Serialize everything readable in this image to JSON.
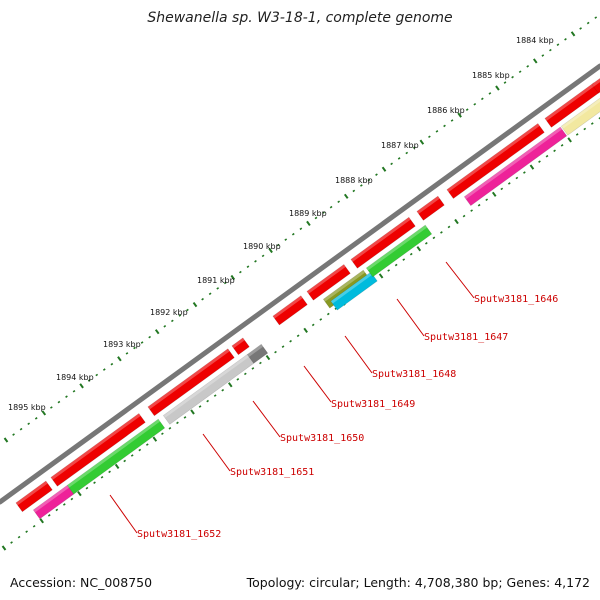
{
  "title": "Shewanella sp. W3-18-1, complete genome",
  "footer": {
    "accession": "Accession: NC_008750",
    "summary": "Topology: circular; Length: 4,708,380 bp; Genes: 4,172"
  },
  "kbp_labels": [
    "1884 kbp",
    "1885 kbp",
    "1886 kbp",
    "1887 kbp",
    "1888 kbp",
    "1889 kbp",
    "1890 kbp",
    "1891 kbp",
    "1892 kbp",
    "1893 kbp",
    "1894 kbp",
    "1895 kbp"
  ],
  "loci": [
    "Sputw3181_1646",
    "Sputw3181_1647",
    "Sputw3181_1648",
    "Sputw3181_1649",
    "Sputw3181_1650",
    "Sputw3181_1651",
    "Sputw3181_1652"
  ],
  "colors": {
    "red": "#ee0000",
    "magenta": "#ee2299",
    "green": "#33cc33",
    "olive": "#889922",
    "cyan": "#00bbdd",
    "gray_light": "#c8c8c8",
    "gray_dark": "#777777",
    "pale_yellow": "#f2e8a0",
    "backbone": "#777777",
    "ticks": "#227722",
    "label": "#cc0000"
  }
}
